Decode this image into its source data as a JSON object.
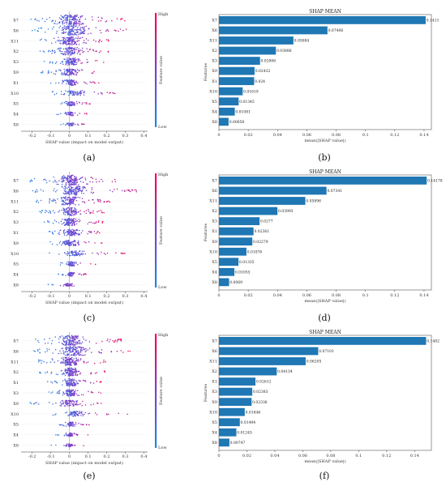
{
  "captions": [
    "(a)",
    "(b)",
    "(c)",
    "(d)",
    "(e)",
    "(f)"
  ],
  "colors": {
    "low": "#1e88e5",
    "high": "#ff0052",
    "bar": "#1f77b4"
  },
  "chart_data": [
    {
      "type": "scatter",
      "caption": "(a)",
      "categories": [
        "X7",
        "X6",
        "X11",
        "X2",
        "X3",
        "X9",
        "X1",
        "X10",
        "X5",
        "X4",
        "X8"
      ],
      "spreads": [
        [
          -0.22,
          0.3
        ],
        [
          -0.2,
          0.36
        ],
        [
          -0.2,
          0.22
        ],
        [
          -0.16,
          0.22
        ],
        [
          -0.14,
          0.2
        ],
        [
          -0.16,
          0.18
        ],
        [
          -0.1,
          0.16
        ],
        [
          -0.12,
          0.32
        ],
        [
          -0.08,
          0.12
        ],
        [
          -0.08,
          0.1
        ],
        [
          -0.06,
          0.1
        ]
      ],
      "xlabel": "SHAP value (impact on model output)",
      "xticks": [
        -0.2,
        -0.1,
        0.0,
        0.1,
        0.2,
        0.3,
        0.4
      ],
      "xlim": [
        -0.26,
        0.42
      ],
      "colorbar": {
        "label": "Feature value",
        "high": "High",
        "low": "Low"
      }
    },
    {
      "type": "bar",
      "caption": "(b)",
      "title": "SHAP MEAN",
      "categories": [
        "X7",
        "X6",
        "X11",
        "X2",
        "X3",
        "X9",
        "X1",
        "X10",
        "X5",
        "X4",
        "X8"
      ],
      "values": [
        0.1411,
        0.07406,
        0.05084,
        0.03886,
        0.02806,
        0.02432,
        0.024,
        0.01619,
        0.01345,
        0.01081,
        0.00658
      ],
      "labels": [
        "0.1411",
        "0.07406",
        "0.05084",
        "0.03886",
        "0.02806",
        "0.02432",
        "0.024",
        "0.01619",
        "0.01345",
        "0.01081",
        "0.00658"
      ],
      "xlabel": "mean(|SHAP value|)",
      "ylabel": "Features",
      "xticks": [
        0.0,
        0.02,
        0.04,
        0.06,
        0.08,
        0.1,
        0.12,
        0.14
      ],
      "xlim": [
        0,
        0.145
      ]
    },
    {
      "type": "scatter",
      "caption": "(c)",
      "categories": [
        "X7",
        "X6",
        "X11",
        "X2",
        "X3",
        "X1",
        "X9",
        "X10",
        "X5",
        "X4",
        "X8"
      ],
      "spreads": [
        [
          -0.22,
          0.28
        ],
        [
          -0.2,
          0.36
        ],
        [
          -0.18,
          0.22
        ],
        [
          -0.16,
          0.2
        ],
        [
          -0.14,
          0.18
        ],
        [
          -0.12,
          0.18
        ],
        [
          -0.14,
          0.18
        ],
        [
          -0.12,
          0.32
        ],
        [
          -0.08,
          0.14
        ],
        [
          -0.06,
          0.1
        ],
        [
          -0.12,
          0.08
        ]
      ],
      "xlabel": "SHAP value (impact on model output)",
      "xticks": [
        -0.2,
        -0.1,
        0.0,
        0.1,
        0.2,
        0.3,
        0.4
      ],
      "xlim": [
        -0.26,
        0.42
      ],
      "colorbar": {
        "label": "Feature value",
        "high": "High",
        "low": "Low"
      }
    },
    {
      "type": "bar",
      "caption": "(d)",
      "title": "SHAP MEAN",
      "categories": [
        "X7",
        "X6",
        "X11",
        "X2",
        "X3",
        "X1",
        "X9",
        "X10",
        "X5",
        "X4",
        "X8"
      ],
      "values": [
        0.14178,
        0.07341,
        0.05896,
        0.03993,
        0.0277,
        0.02361,
        0.02279,
        0.01876,
        0.01335,
        0.01055,
        0.0069
      ],
      "labels": [
        "0.14178",
        "0.07341",
        "0.05896",
        "0.03993",
        "0.0277",
        "0.02361",
        "0.02279",
        "0.01876",
        "0.01335",
        "0.01055",
        "0.0069"
      ],
      "xlabel": "mean(|SHAP value|)",
      "ylabel": "Features",
      "xticks": [
        0.0,
        0.02,
        0.04,
        0.06,
        0.08,
        0.1,
        0.12,
        0.14
      ],
      "xlim": [
        0,
        0.145
      ]
    },
    {
      "type": "scatter",
      "caption": "(e)",
      "categories": [
        "X7",
        "X6",
        "X11",
        "X2",
        "X1",
        "X3",
        "X9",
        "X10",
        "X5",
        "X4",
        "X8"
      ],
      "spreads": [
        [
          -0.22,
          0.28
        ],
        [
          -0.2,
          0.34
        ],
        [
          -0.2,
          0.2
        ],
        [
          -0.16,
          0.2
        ],
        [
          -0.12,
          0.18
        ],
        [
          -0.12,
          0.18
        ],
        [
          -0.22,
          0.2
        ],
        [
          -0.12,
          0.32
        ],
        [
          -0.08,
          0.12
        ],
        [
          -0.08,
          0.1
        ],
        [
          -0.1,
          0.08
        ]
      ],
      "xlabel": "SHAP value (impact on model output)",
      "xticks": [
        -0.2,
        -0.1,
        0.0,
        0.1,
        0.2,
        0.3,
        0.4
      ],
      "xlim": [
        -0.26,
        0.42
      ],
      "colorbar": {
        "label": "Feature value",
        "high": "High",
        "low": "Low"
      }
    },
    {
      "type": "bar",
      "caption": "(f)",
      "title": "SHAP MEAN",
      "categories": [
        "X7",
        "X6",
        "X11",
        "X2",
        "X1",
        "X3",
        "X9",
        "X10",
        "X5",
        "X4",
        "X8"
      ],
      "values": [
        0.1482,
        0.07101,
        0.06205,
        0.04134,
        0.02612,
        0.02383,
        0.02336,
        0.01846,
        0.01494,
        0.01245,
        0.00747
      ],
      "labels": [
        "0.1482",
        "0.07101",
        "0.06205",
        "0.04134",
        "0.02612",
        "0.02383",
        "0.02336",
        "0.01846",
        "0.01494",
        "0.01245",
        "0.00747"
      ],
      "xlabel": "mean(|SHAP value|)",
      "ylabel": "Features",
      "xticks": [
        0.0,
        0.02,
        0.04,
        0.06,
        0.08,
        0.1,
        0.12,
        0.14
      ],
      "xlim": [
        0,
        0.152
      ]
    }
  ]
}
